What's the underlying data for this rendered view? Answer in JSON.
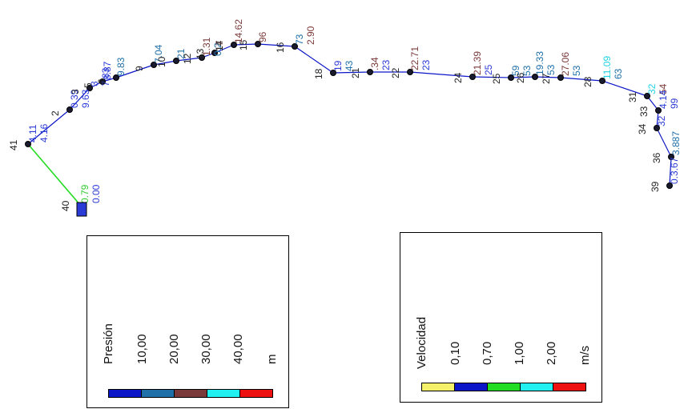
{
  "network": {
    "nodes": [
      {
        "id": "41",
        "label": "41",
        "values": [
          {
            "text": "4.11",
            "color": "#2b3bd6"
          },
          {
            "text": "4.16",
            "color": "#2b3bd6"
          }
        ]
      },
      {
        "id": "40",
        "label": "40",
        "values": [
          {
            "text": "0.79",
            "color": "#33cc33"
          },
          {
            "text": "0.00",
            "color": "#2b3bd6"
          }
        ]
      },
      {
        "id": "2",
        "label": "2",
        "values": [
          {
            "text": "0.39",
            "color": "#2b3bd6"
          },
          {
            "text": "9.63",
            "color": "#2b3bd6"
          }
        ]
      },
      {
        "id": "3",
        "label": "3",
        "values": [
          {
            "text": "3",
            "color": "#2b3bd6"
          },
          {
            "text": "7.83",
            "color": "#2b3bd6"
          }
        ]
      },
      {
        "id": "5",
        "label": "5",
        "values": [
          {
            "text": "8.87",
            "color": "#2b3bd6"
          }
        ]
      },
      {
        "id": "6",
        "label": "6",
        "values": [
          {
            "text": "9.83",
            "color": "#1f6fa8"
          }
        ]
      },
      {
        "id": "7",
        "label": "9",
        "values": [
          {
            "text": "7.04",
            "color": "#1f6fa8"
          }
        ]
      },
      {
        "id": "10",
        "label": "10",
        "values": [
          {
            "text": "21",
            "color": "#1f6fa8"
          }
        ]
      },
      {
        "id": "12",
        "label": "12",
        "values": [
          {
            "text": "1.31",
            "color": "#7a3a3a"
          },
          {
            "text": "0.2",
            "color": "#1f6fa8"
          }
        ]
      },
      {
        "id": "13",
        "label": "13",
        "values": [
          {
            "text": "17",
            "color": "#7a3a3a"
          }
        ]
      },
      {
        "id": "14",
        "label": "14",
        "values": [
          {
            "text": "14.62",
            "color": "#7a3a3a"
          }
        ]
      },
      {
        "id": "15",
        "label": "15",
        "values": [
          {
            "text": "96",
            "color": "#7a3a3a"
          }
        ]
      },
      {
        "id": "16",
        "label": "16",
        "values": [
          {
            "text": "73",
            "color": "#1f6fa8"
          },
          {
            "text": "2.90",
            "color": "#7a3a3a"
          }
        ]
      },
      {
        "id": "18",
        "label": "18",
        "values": [
          {
            "text": "19",
            "color": "#2b3bd6"
          },
          {
            "text": "43",
            "color": "#1f6fa8"
          }
        ]
      },
      {
        "id": "21",
        "label": "21",
        "values": [
          {
            "text": ".34",
            "color": "#7a3a3a"
          },
          {
            "text": "23",
            "color": "#2b3bd6"
          }
        ]
      },
      {
        "id": "22",
        "label": "22",
        "values": [
          {
            "text": "22.71",
            "color": "#7a3a3a"
          },
          {
            "text": "23",
            "color": "#2b3bd6"
          }
        ]
      },
      {
        "id": "24",
        "label": "24",
        "values": [
          {
            "text": "21.39",
            "color": "#7a3a3a"
          },
          {
            "text": "25",
            "color": "#2b3bd6"
          }
        ]
      },
      {
        "id": "25",
        "label": "25",
        "values": [
          {
            "text": "59",
            "color": "#1f6fa8"
          },
          {
            "text": "53",
            "color": "#1f6fa8"
          }
        ]
      },
      {
        "id": "26",
        "label": "26",
        "values": [
          {
            "text": "19.33",
            "color": "#1f6fa8"
          },
          {
            "text": "53",
            "color": "#1f6fa8"
          }
        ]
      },
      {
        "id": "27",
        "label": "27",
        "values": [
          {
            "text": "27.06",
            "color": "#7a3a3a"
          },
          {
            "text": "53",
            "color": "#1f6fa8"
          }
        ]
      },
      {
        "id": "28",
        "label": "28",
        "values": [
          {
            "text": "11.09",
            "color": "#22d3e6"
          },
          {
            "text": "63",
            "color": "#1f6fa8"
          }
        ]
      },
      {
        "id": "31",
        "label": "31",
        "values": [
          {
            "text": "32",
            "color": "#22d3e6"
          },
          {
            "text": "54",
            "color": "#7a3a3a"
          }
        ]
      },
      {
        "id": "33",
        "label": "33",
        "values": [
          {
            "text": "4.14",
            "color": "#2b3bd6"
          },
          {
            "text": "99",
            "color": "#2b3bd6"
          }
        ]
      },
      {
        "id": "34",
        "label": "34",
        "values": [
          {
            "text": "32",
            "color": "#2b3bd6"
          }
        ]
      },
      {
        "id": "36",
        "label": "36",
        "values": [
          {
            "text": "3.887",
            "color": "#1f6fa8"
          }
        ]
      },
      {
        "id": "39",
        "label": "39",
        "values": [
          {
            "text": "0.3.67",
            "color": "#2b3bd6"
          }
        ]
      }
    ]
  },
  "legend_presion": {
    "title": "Presión",
    "values": [
      "10,00",
      "20,00",
      "30,00",
      "40,00"
    ],
    "unit": "m",
    "colors": [
      "#0b16c8",
      "#1f6fa8",
      "#7a3a3a",
      "#22f0f0",
      "#ee1111"
    ]
  },
  "legend_velocidad": {
    "title": "Velocidad",
    "values": [
      "0,10",
      "0,70",
      "1,00",
      "2,00"
    ],
    "unit": "m/s",
    "colors": [
      "#f5f06a",
      "#0b16c8",
      "#22dd22",
      "#22f0f0",
      "#ee1111"
    ]
  }
}
